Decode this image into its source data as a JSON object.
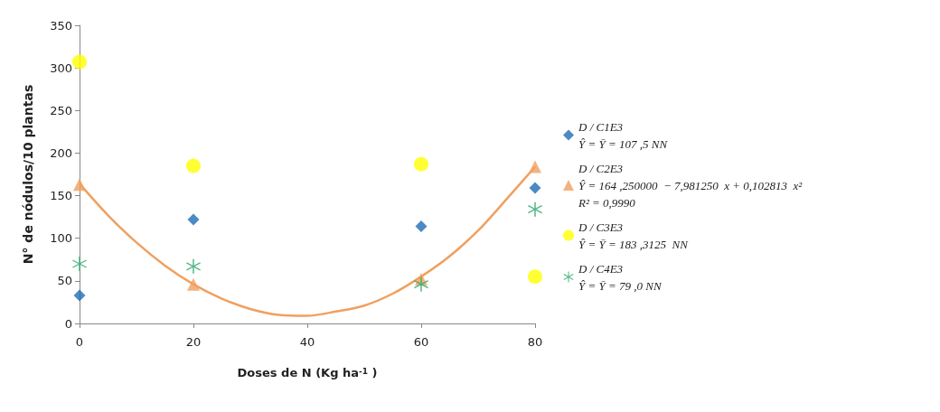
{
  "chart_data": {
    "type": "scatter",
    "xlabel": "Doses de N (Kg ha$^{-1}$ )",
    "ylabel": "N° de nódulos/10 plantas",
    "xlim": [
      0,
      80
    ],
    "xticks": [
      0,
      20,
      40,
      60,
      80
    ],
    "ylim": [
      0,
      350
    ],
    "yticks": [
      0,
      50,
      100,
      150,
      200,
      250,
      300,
      350
    ],
    "grid": false,
    "legend": "right",
    "x": [
      0,
      20,
      60,
      80
    ],
    "series": [
      {
        "name": "D / C1E3\nŶ = Ȳ = 107 ,5 NN",
        "color": "#1f6db5",
        "marker": "diamond",
        "values": [
          33,
          122,
          114,
          159
        ]
      },
      {
        "name": "D / C2E3\nŶ = 164 ,250000  − 7,981250  x + 0,102813  x²\nR² = 0,9990",
        "color": "#f0a060",
        "marker": "triangle",
        "values": [
          163,
          46,
          52,
          184
        ]
      },
      {
        "color": "#f0a060",
        "type": "line",
        "marker": "none",
        "x": [
          0,
          5,
          10,
          15,
          20,
          25,
          30,
          35,
          40,
          45,
          50,
          55,
          60,
          65,
          70,
          75,
          80
        ],
        "values": [
          164,
          127,
          95,
          68,
          46,
          29,
          17,
          10,
          9,
          14,
          21,
          35,
          55,
          79,
          109,
          146,
          184
        ]
      },
      {
        "name": "D / C3E3\nŶ = Ȳ = 183 ,3125  NN",
        "color": "#ffff00",
        "marker": "circle",
        "values": [
          307,
          185,
          187,
          55
        ]
      },
      {
        "name": "D / C4E3\nŶ = Ȳ = 79 ,0 NN",
        "color": "#2eaa6e",
        "marker": "cross",
        "values": [
          70,
          67,
          46,
          134
        ]
      }
    ]
  }
}
